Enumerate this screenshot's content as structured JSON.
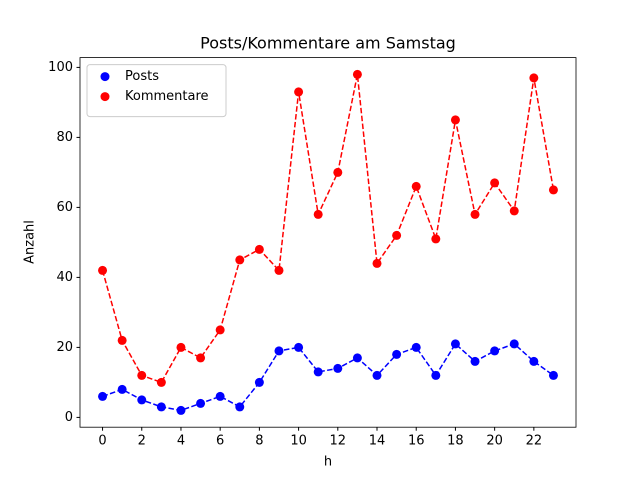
{
  "chart_data": {
    "type": "line",
    "title": "Posts/Kommentare am Samstag",
    "x_label": "h",
    "y_label": "Anzahl",
    "x": [
      0,
      1,
      2,
      3,
      4,
      5,
      6,
      7,
      8,
      9,
      10,
      11,
      12,
      13,
      14,
      15,
      16,
      17,
      18,
      19,
      20,
      21,
      22,
      23
    ],
    "series": [
      {
        "name": "Posts",
        "color": "#0000ff",
        "values": [
          6,
          8,
          5,
          3,
          2,
          4,
          6,
          3,
          10,
          19,
          20,
          13,
          14,
          17,
          12,
          18,
          20,
          12,
          21,
          16,
          19,
          21,
          16,
          12
        ]
      },
      {
        "name": "Kommentare",
        "color": "#ff0000",
        "values": [
          42,
          22,
          12,
          10,
          20,
          17,
          25,
          45,
          48,
          42,
          93,
          58,
          70,
          98,
          44,
          52,
          66,
          51,
          85,
          58,
          67,
          59,
          97,
          65
        ]
      }
    ],
    "xlim": [
      -1.15,
      24.15
    ],
    "xticks": [
      0,
      2,
      4,
      6,
      8,
      10,
      12,
      14,
      16,
      18,
      20,
      22
    ],
    "ylim": [
      -2.8,
      102.8
    ],
    "yticks": [
      0,
      20,
      40,
      60,
      80,
      100
    ],
    "linestyle": "dashed",
    "marker": "circle",
    "legend": "upper-left",
    "grid": false
  }
}
